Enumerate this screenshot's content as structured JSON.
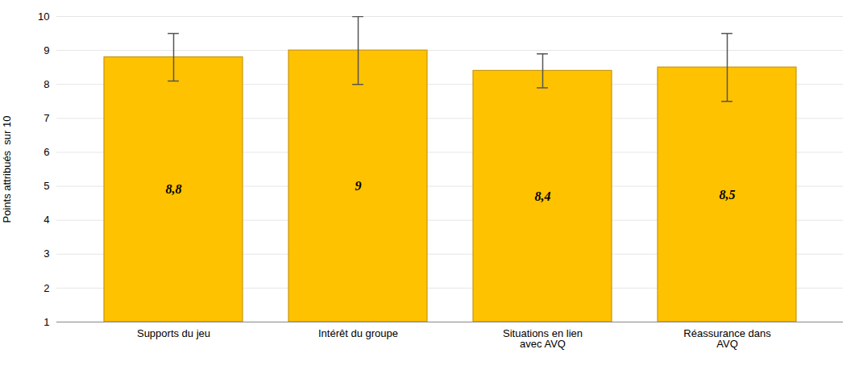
{
  "chart_data": {
    "type": "bar",
    "categories": [
      "Supports du jeu",
      "Intérêt du groupe",
      "Situations en lien\navec AVQ",
      "Réassurance dans\nAVQ"
    ],
    "values": [
      8.8,
      9.0,
      8.4,
      8.5
    ],
    "errors": [
      0.7,
      1.0,
      0.5,
      1.0
    ],
    "value_labels": [
      "8,8",
      "9",
      "8,4",
      "8,5"
    ],
    "data_labels": true,
    "color": "#FFC200",
    "ylabel": "Points attribués  sur 10",
    "ylim": [
      1,
      10
    ],
    "yticks": [
      1,
      2,
      3,
      4,
      5,
      6,
      7,
      8,
      9,
      10
    ],
    "grid": true
  }
}
